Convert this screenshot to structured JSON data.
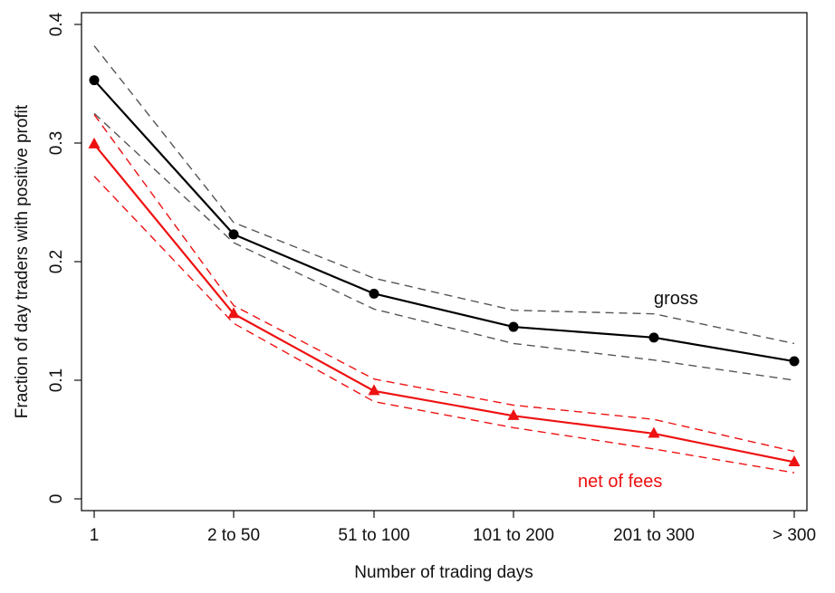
{
  "chart_data": {
    "type": "line",
    "xlabel": "Number of trading days",
    "ylabel": "Fraction of day traders with positive profit",
    "categories": [
      "1",
      "2 to 50",
      "51 to 100",
      "101 to 200",
      "201 to 300",
      "> 300"
    ],
    "ylim": [
      0,
      0.4
    ],
    "yticks": [
      0,
      0.1,
      0.2,
      0.3,
      0.4
    ],
    "ytick_labels": [
      "0",
      "0.1",
      "0.2",
      "0.3",
      "0.4"
    ],
    "grid": false,
    "series": [
      {
        "name": "gross",
        "color": "#000000",
        "band_color": "#555555",
        "marker": "circle",
        "values": [
          0.353,
          0.223,
          0.173,
          0.145,
          0.136,
          0.116
        ],
        "upper": [
          0.382,
          0.233,
          0.186,
          0.159,
          0.156,
          0.131
        ],
        "lower": [
          0.325,
          0.216,
          0.16,
          0.131,
          0.117,
          0.1
        ]
      },
      {
        "name": "net of fees",
        "color": "#ee1111",
        "band_color": "#ee1111",
        "marker": "triangle",
        "values": [
          0.299,
          0.156,
          0.091,
          0.07,
          0.055,
          0.031
        ],
        "upper": [
          0.324,
          0.163,
          0.101,
          0.079,
          0.067,
          0.04
        ],
        "lower": [
          0.272,
          0.148,
          0.082,
          0.06,
          0.042,
          0.022
        ]
      }
    ]
  }
}
